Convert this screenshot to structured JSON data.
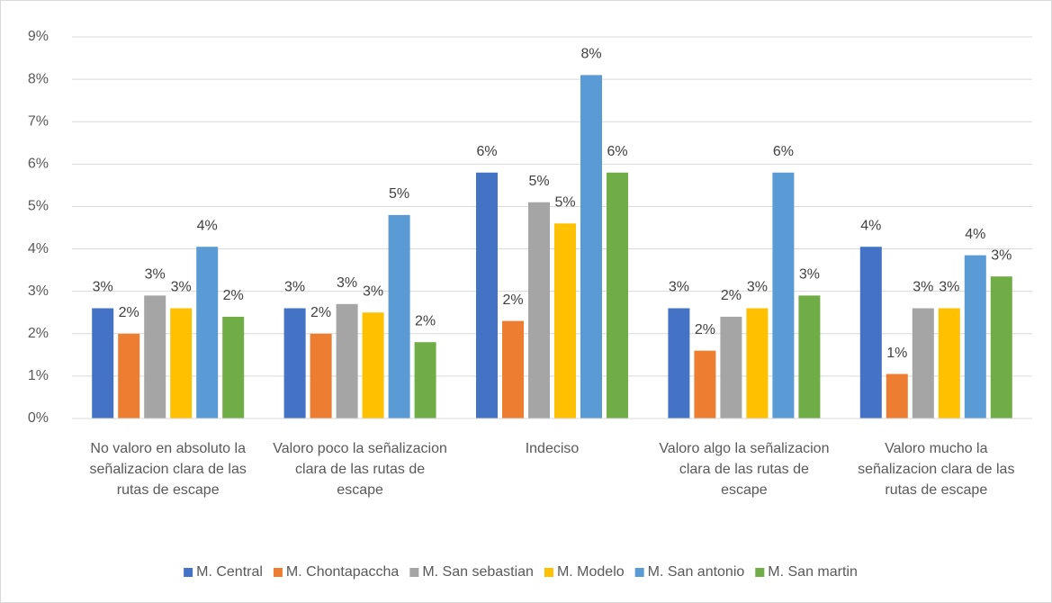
{
  "chart_data": {
    "type": "bar",
    "categories": [
      "No valoro en absoluto la señalizacion clara de las rutas de escape",
      "Valoro poco la señalizacion clara de las rutas de escape",
      "Indeciso",
      "Valoro algo la señalizacion clara de las rutas de escape",
      "Valoro mucho la señalizacion clara de las rutas de escape"
    ],
    "series": [
      {
        "name": "M. Central",
        "color": "#4472c4",
        "values": [
          2.6,
          2.6,
          5.8,
          2.6,
          4.05
        ],
        "value_labels": [
          "3%",
          "3%",
          "6%",
          "3%",
          "4%"
        ]
      },
      {
        "name": "M. Chontapaccha",
        "color": "#ed7d31",
        "values": [
          2.0,
          2.0,
          2.3,
          1.6,
          1.05
        ],
        "value_labels": [
          "2%",
          "2%",
          "2%",
          "2%",
          "1%"
        ]
      },
      {
        "name": "M. San sebastian",
        "color": "#a5a5a5",
        "values": [
          2.9,
          2.7,
          5.1,
          2.4,
          2.6
        ],
        "value_labels": [
          "3%",
          "3%",
          "5%",
          "2%",
          "3%"
        ]
      },
      {
        "name": "M. Modelo",
        "color": "#ffc000",
        "values": [
          2.6,
          2.5,
          4.6,
          2.6,
          2.6
        ],
        "value_labels": [
          "3%",
          "3%",
          "5%",
          "3%",
          "3%"
        ]
      },
      {
        "name": "M. San antonio",
        "color": "#5b9bd5",
        "values": [
          4.05,
          4.8,
          8.1,
          5.8,
          3.85
        ],
        "value_labels": [
          "4%",
          "5%",
          "8%",
          "6%",
          "4%"
        ]
      },
      {
        "name": "M. San martin",
        "color": "#70ad47",
        "values": [
          2.4,
          1.8,
          5.8,
          2.9,
          3.35
        ],
        "value_labels": [
          "2%",
          "2%",
          "6%",
          "3%",
          "3%"
        ]
      }
    ],
    "ylim": [
      0,
      9
    ],
    "yticks": [
      {
        "value": 0,
        "label": "0%"
      },
      {
        "value": 1,
        "label": "1%"
      },
      {
        "value": 2,
        "label": "2%"
      },
      {
        "value": 3,
        "label": "3%"
      },
      {
        "value": 4,
        "label": "4%"
      },
      {
        "value": 5,
        "label": "5%"
      },
      {
        "value": 6,
        "label": "6%"
      },
      {
        "value": 7,
        "label": "7%"
      },
      {
        "value": 8,
        "label": "8%"
      },
      {
        "value": 9,
        "label": "9%"
      }
    ],
    "grid": true,
    "legend": "bottom"
  }
}
